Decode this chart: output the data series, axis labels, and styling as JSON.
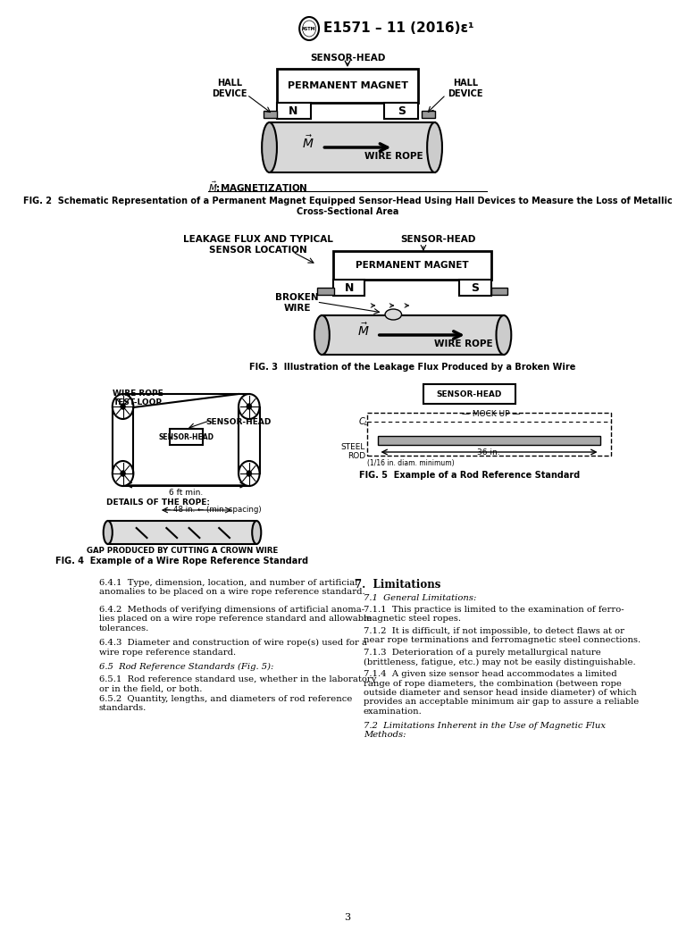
{
  "page_width": 7.78,
  "page_height": 10.41,
  "bg_color": "#ffffff",
  "title_line": "E1571 – 11 (2016)ε¹",
  "fig2_caption": "FIG. 2  Schematic Representation of a Permanent Magnet Equipped Sensor-Head Using Hall Devices to Measure the Loss of Metallic\nCross-Sectional Area",
  "fig3_caption": "FIG. 3  Illustration of the Leakage Flux Produced by a Broken Wire",
  "fig4_caption": "FIG. 4  Example of a Wire Rope Reference Standard",
  "fig5_caption": "FIG. 5  Example of a Rod Reference Standard",
  "section_641": "6.4.1  Type, dimension, location, and number of artificial\nanomalies to be placed on a wire rope reference standard.",
  "section_642": "6.4.2  Methods of verifying dimensions of artificial anoma-\nlies placed on a wire rope reference standard and allowable\ntolerances.",
  "section_643": "6.4.3  Diameter and construction of wire rope(s) used for a\nwire rope reference standard.",
  "section_651": "6.5.1  Rod reference standard use, whether in the laboratory\nor in the field, or both.",
  "section_652": "6.5.2  Quantity, lengths, and diameters of rod reference\nstandards.",
  "section_711": "7.1.1  This practice is limited to the examination of ferro-\nmagnetic steel ropes.",
  "section_712": "7.1.2  It is difficult, if not impossible, to detect flaws at or\nnear rope terminations and ferromagnetic steel connections.",
  "section_713": "7.1.3  Deterioration of a purely metallurgical nature\n(brittleness, fatigue, etc.) may not be easily distinguishable.",
  "section_714": "7.1.4  A given size sensor head accommodates a limited\nrange of rope diameters, the combination (between rope\noutside diameter and sensor head inside diameter) of which\nprovides an acceptable minimum air gap to assure a reliable\nexamination.",
  "section_72": "7.2  Limitations Inherent in the Use of Magnetic Flux\nMethods:",
  "page_number": "3"
}
